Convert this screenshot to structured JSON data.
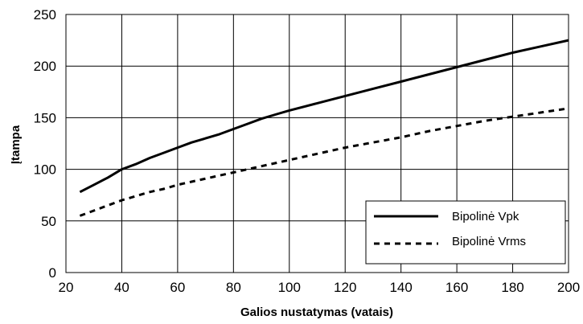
{
  "chart_data": {
    "type": "line",
    "title": "",
    "xlabel": "Galios nustatymas (vatais)",
    "ylabel": "Įtampa",
    "xlim": [
      20,
      200
    ],
    "ylim": [
      0,
      250
    ],
    "xticks": [
      20,
      40,
      60,
      80,
      100,
      120,
      140,
      160,
      180,
      200
    ],
    "yticks": [
      0,
      50,
      100,
      150,
      200,
      250
    ],
    "grid": true,
    "legend_position": "bottom-right",
    "series": [
      {
        "name": "Bipolinė Vpk",
        "style": "solid",
        "color": "#000000",
        "x": [
          25,
          30,
          35,
          40,
          45,
          50,
          55,
          60,
          65,
          70,
          75,
          80,
          85,
          90,
          95,
          100,
          110,
          120,
          130,
          140,
          150,
          160,
          170,
          180,
          190,
          200
        ],
        "y": [
          78,
          85,
          92,
          100,
          105,
          111,
          116,
          121,
          126,
          130,
          134,
          139,
          144,
          149,
          153,
          157,
          164,
          171,
          178,
          185,
          192,
          199,
          206,
          213,
          219,
          225
        ]
      },
      {
        "name": "Bipolinė Vrms",
        "style": "dashed",
        "color": "#000000",
        "x": [
          25,
          30,
          35,
          40,
          45,
          50,
          55,
          60,
          65,
          70,
          75,
          80,
          85,
          90,
          95,
          100,
          110,
          120,
          130,
          140,
          150,
          160,
          170,
          180,
          190,
          200
        ],
        "y": [
          55,
          60,
          65,
          70,
          74,
          78,
          81,
          85,
          88,
          91,
          94,
          97,
          100,
          103,
          106,
          109,
          115,
          121,
          126,
          131,
          137,
          142,
          147,
          151,
          155,
          159
        ]
      }
    ]
  }
}
